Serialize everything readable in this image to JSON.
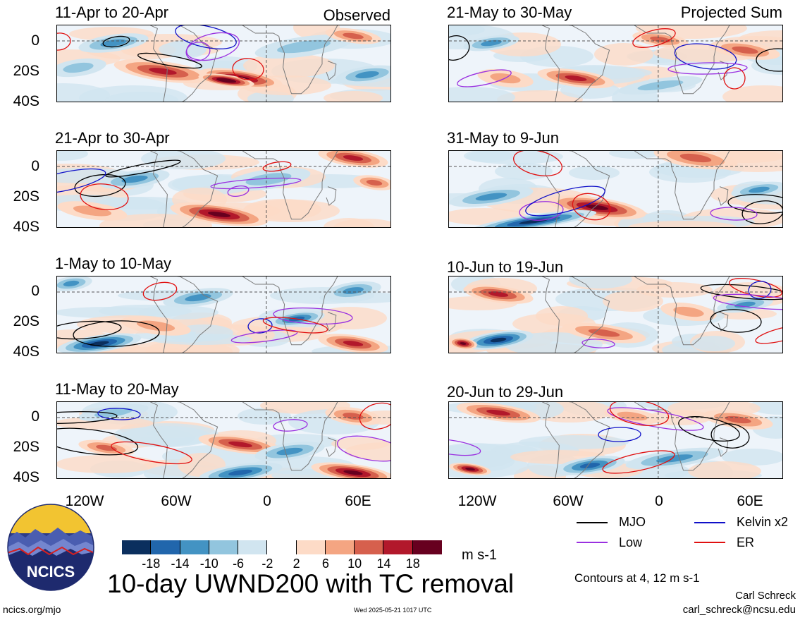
{
  "left_corner_label": "Observed",
  "right_corner_label": "Projected Sum",
  "panels_left": [
    {
      "title": "11-Apr to 20-Apr"
    },
    {
      "title": "21-Apr to 30-Apr"
    },
    {
      "title": "1-May to 10-May"
    },
    {
      "title": "11-May to 20-May"
    }
  ],
  "panels_right": [
    {
      "title": "21-May to 30-May"
    },
    {
      "title": "31-May to 9-Jun"
    },
    {
      "title": "10-Jun to 19-Jun"
    },
    {
      "title": "20-Jun to 29-Jun"
    }
  ],
  "lat_labels": [
    "0",
    "20S",
    "40S"
  ],
  "lon_labels": [
    "120W",
    "60W",
    "0",
    "60E"
  ],
  "legend": {
    "mjo": "MJO",
    "kelvin": "Kelvin x2",
    "low": "Low",
    "er": "ER",
    "colors": {
      "mjo": "#000000",
      "kelvin": "#1010c8",
      "low": "#9a30e0",
      "er": "#e01010"
    }
  },
  "colorbar": {
    "ticks": [
      "-18",
      "-14",
      "-10",
      "-6",
      "-2",
      "2",
      "6",
      "10",
      "14",
      "18"
    ],
    "units": "m s-1",
    "colors": [
      "#0b2f5e",
      "#2166ac",
      "#4393c3",
      "#92c5de",
      "#d1e5f0",
      "#ffffff",
      "#fddbc7",
      "#f4a582",
      "#d6604d",
      "#b2182b",
      "#67001f"
    ]
  },
  "main_title": "10-day UWND200 with TC removal",
  "contours_note": "Contours at 4, 12 m s-1",
  "logo_text": "NCICS",
  "site": "ncics.org/mjo",
  "timestamp": "Wed 2025-05-21 1017 UTC",
  "author": "Carl Schreck",
  "email": "carl_schreck@ncsu.edu"
}
